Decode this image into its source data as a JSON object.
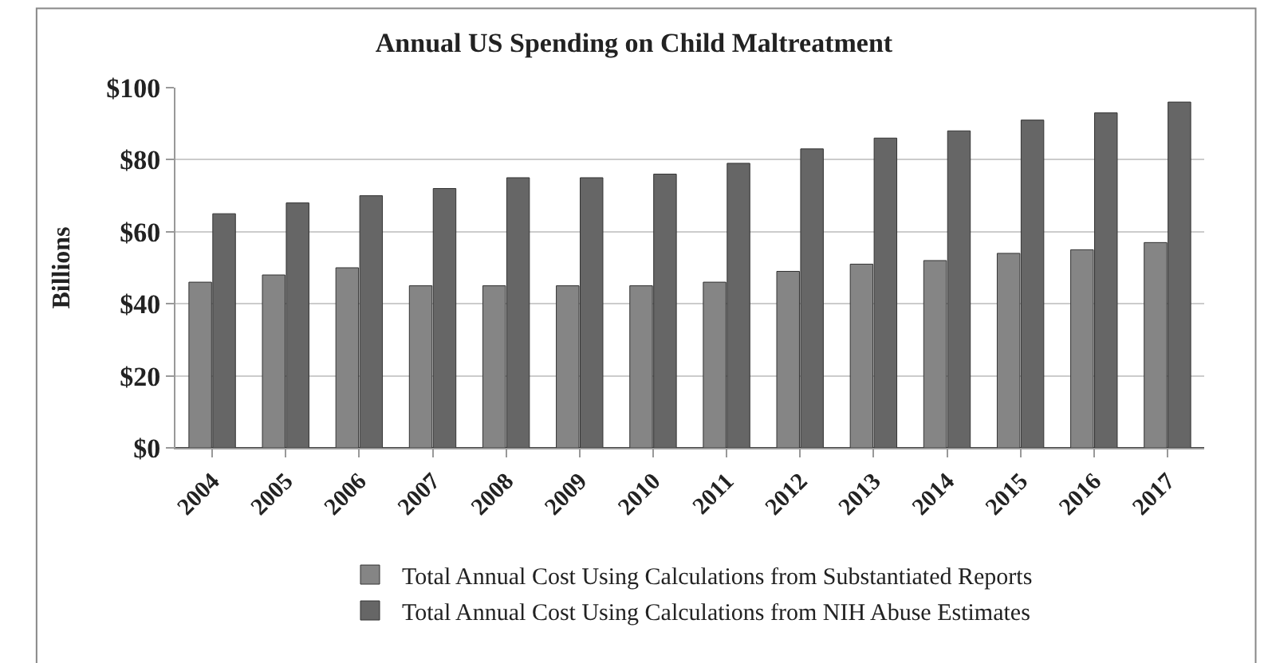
{
  "chart_data": {
    "type": "bar",
    "title": "Annual US Spending on Child Maltreatment",
    "ylabel": "Billions",
    "categories": [
      "2004",
      "2005",
      "2006",
      "2007",
      "2008",
      "2009",
      "2010",
      "2011",
      "2012",
      "2013",
      "2014",
      "2015",
      "2016",
      "2017"
    ],
    "series": [
      {
        "name": "Total Annual Cost Using Calculations from Substantiated Reports",
        "color": "#858585",
        "values": [
          46,
          48,
          50,
          45,
          45,
          45,
          45,
          46,
          49,
          51,
          52,
          54,
          55,
          57
        ]
      },
      {
        "name": "Total Annual Cost Using Calculations from NIH Abuse Estimates",
        "color": "#666666",
        "values": [
          65,
          68,
          70,
          72,
          75,
          75,
          76,
          79,
          83,
          86,
          88,
          91,
          93,
          96
        ]
      }
    ],
    "ylim": [
      0,
      100
    ],
    "yticks": [
      {
        "value": 0,
        "label": "$0"
      },
      {
        "value": 20,
        "label": "$20"
      },
      {
        "value": 40,
        "label": "$40"
      },
      {
        "value": 60,
        "label": "$60"
      },
      {
        "value": 80,
        "label": "$80"
      },
      {
        "value": 100,
        "label": "$100"
      }
    ],
    "grid": "y",
    "legend": "bottom"
  }
}
